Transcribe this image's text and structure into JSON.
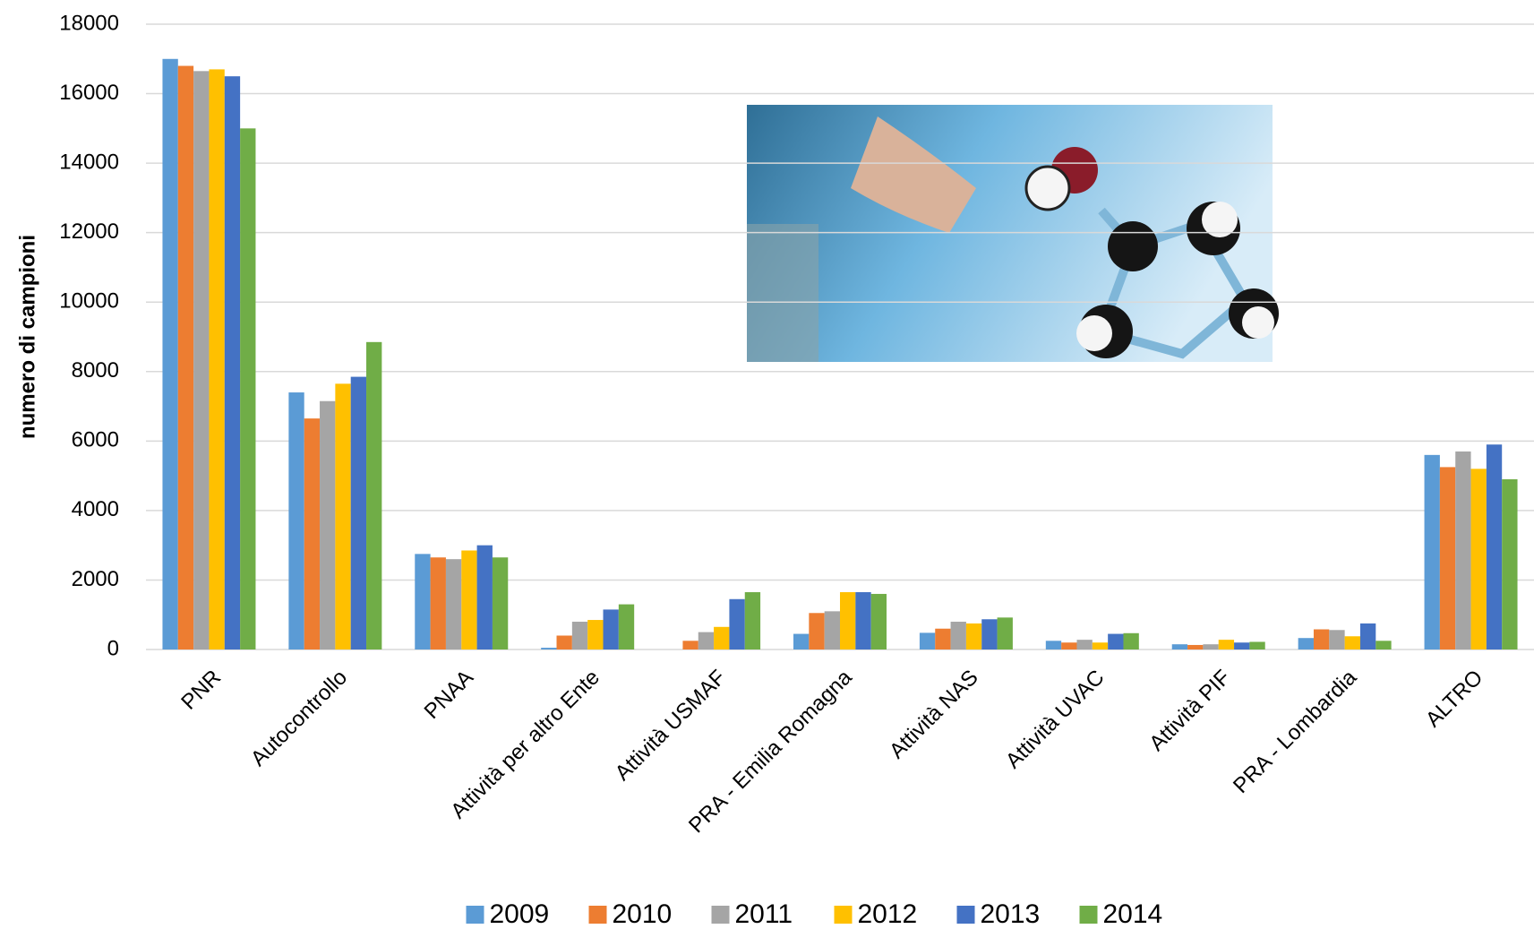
{
  "chart_data": {
    "type": "bar",
    "y_label": "numero di campioni",
    "categories": [
      "PNR",
      "Autocontrollo",
      "PNAA",
      "Attività per altro Ente",
      "Attività USMAF",
      "PRA - Emilia Romagna",
      "Attività NAS",
      "Attività UVAC",
      "Attività PIF",
      "PRA - Lombardia",
      "ALTRO"
    ],
    "series": [
      {
        "name": "2009",
        "color": "#5b9bd5",
        "values": [
          17000,
          7400,
          2750,
          50,
          0,
          450,
          480,
          250,
          150,
          330,
          5600
        ]
      },
      {
        "name": "2010",
        "color": "#ed7d31",
        "values": [
          16800,
          6650,
          2650,
          400,
          250,
          1050,
          600,
          200,
          130,
          580,
          5250
        ]
      },
      {
        "name": "2011",
        "color": "#a5a5a5",
        "values": [
          16650,
          7150,
          2600,
          800,
          500,
          1100,
          800,
          280,
          150,
          560,
          5700
        ]
      },
      {
        "name": "2012",
        "color": "#ffc000",
        "values": [
          16700,
          7650,
          2850,
          850,
          650,
          1650,
          750,
          200,
          280,
          380,
          5200
        ]
      },
      {
        "name": "2013",
        "color": "#4472c4",
        "values": [
          16500,
          7850,
          3000,
          1150,
          1450,
          1650,
          870,
          450,
          200,
          750,
          5900
        ]
      },
      {
        "name": "2014",
        "color": "#70ad47",
        "values": [
          15000,
          8850,
          2650,
          1300,
          1650,
          1600,
          920,
          470,
          220,
          250,
          4900
        ]
      }
    ],
    "ylim": [
      0,
      18000
    ],
    "yticks": [
      0,
      2000,
      4000,
      6000,
      8000,
      10000,
      12000,
      14000,
      16000,
      18000
    ],
    "grid": true
  }
}
